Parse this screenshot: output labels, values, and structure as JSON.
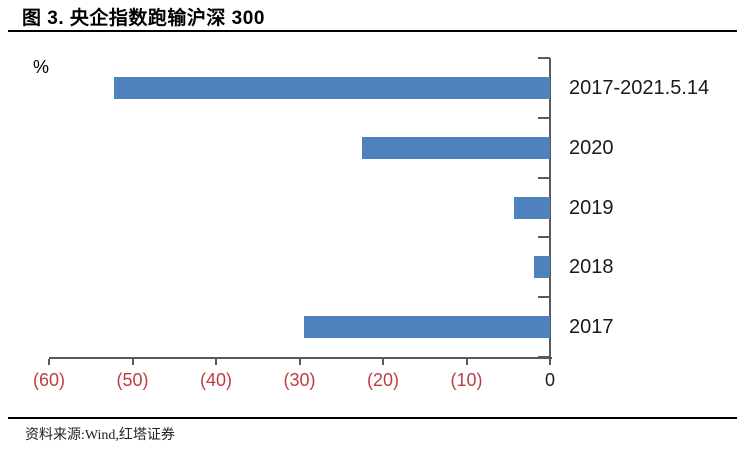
{
  "header": {
    "title": "图 3. 央企指数跑输沪深 300"
  },
  "chart": {
    "unit_label": "%"
  },
  "chart_data": {
    "type": "bar",
    "orientation": "horizontal",
    "title": "图 3. 央企指数跑输沪深 300",
    "categories": [
      "2017-2021.5.14",
      "2020",
      "2019",
      "2018",
      "2017"
    ],
    "values": [
      -52.2,
      -22.5,
      -4.3,
      -1.9,
      -29.5
    ],
    "unit": "%",
    "xlabel": "",
    "ylabel": "%",
    "xlim": [
      -60,
      0
    ],
    "x_tick_values": [
      -60,
      -50,
      -40,
      -30,
      -20,
      -10,
      0
    ],
    "x_tick_labels": [
      "(60)",
      "(50)",
      "(40)",
      "(30)",
      "(20)",
      "(10)",
      "0"
    ],
    "bar_color": "#4f81bd",
    "axis_color": "#595959",
    "negative_label_color": "#c13b44",
    "zero_label_color": "#1a1a1a",
    "grid": false,
    "legend": "none",
    "category_labels_position": "right"
  },
  "footer": {
    "source": "资料来源:Wind,红塔证券"
  }
}
